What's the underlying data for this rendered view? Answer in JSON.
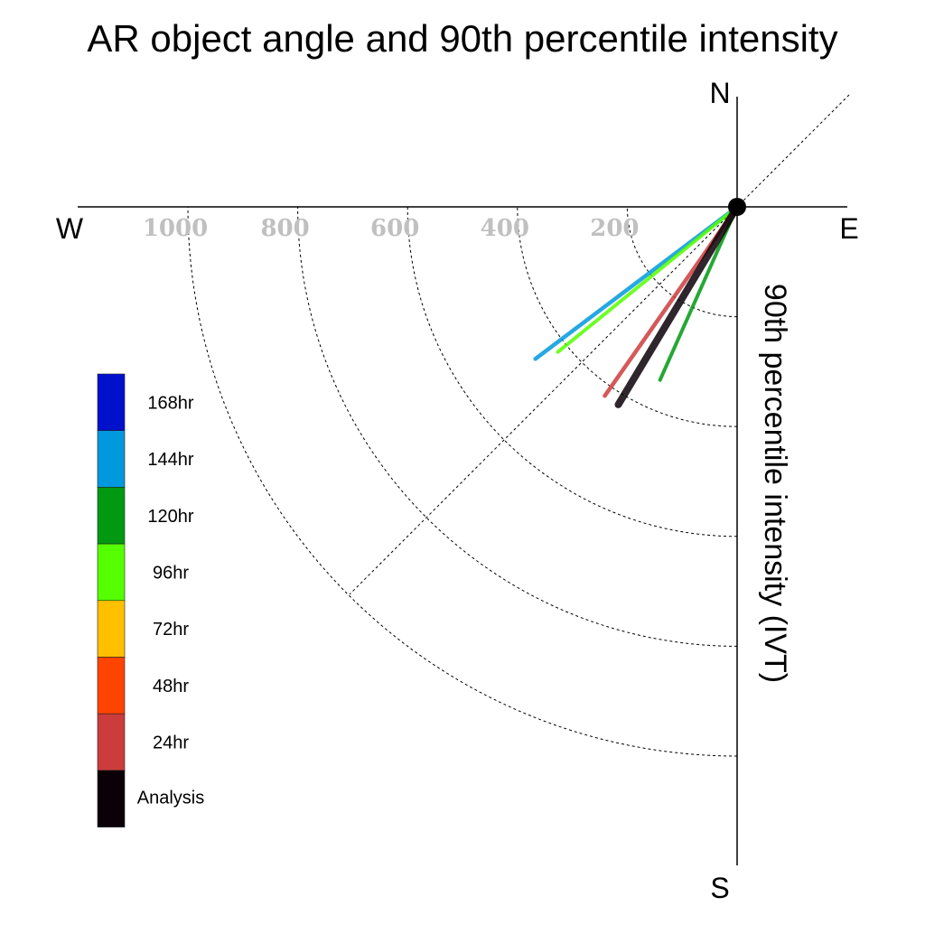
{
  "chart_data": {
    "type": "polar",
    "title": "AR object angle and 90th percentile intensity",
    "radial_label": "90th percentile intensity (IVT)",
    "compass": {
      "north": "N",
      "south": "S",
      "east": "E",
      "west": "W"
    },
    "radial_ticks": [
      200,
      400,
      600,
      800,
      1000
    ],
    "radial_range": [
      0,
      1200
    ],
    "angle_unit": "degrees clockwise from north",
    "series": [
      {
        "name": "Analysis",
        "color": "#0b0008",
        "angle": 211,
        "intensity": 420
      },
      {
        "name": "24hr",
        "color": "#cc3c3c",
        "angle": 215,
        "intensity": 420
      },
      {
        "name": "96hr",
        "color": "#55ff00",
        "angle": 231,
        "intensity": 420
      },
      {
        "name": "144hr",
        "color": "#0099dd",
        "angle": 233,
        "intensity": 460
      },
      {
        "name": "120hr",
        "color": "#009911",
        "angle": 204,
        "intensity": 345
      }
    ],
    "legend": [
      {
        "label": "168hr",
        "color": "#0011cc"
      },
      {
        "label": "144hr",
        "color": "#0099dd"
      },
      {
        "label": "120hr",
        "color": "#009911"
      },
      {
        "label": "96hr",
        "color": "#55ff00"
      },
      {
        "label": "72hr",
        "color": "#ffc000"
      },
      {
        "label": "48hr",
        "color": "#ff4400"
      },
      {
        "label": "24hr",
        "color": "#cc3c3c"
      },
      {
        "label": "Analysis",
        "color": "#0b0008"
      }
    ]
  }
}
